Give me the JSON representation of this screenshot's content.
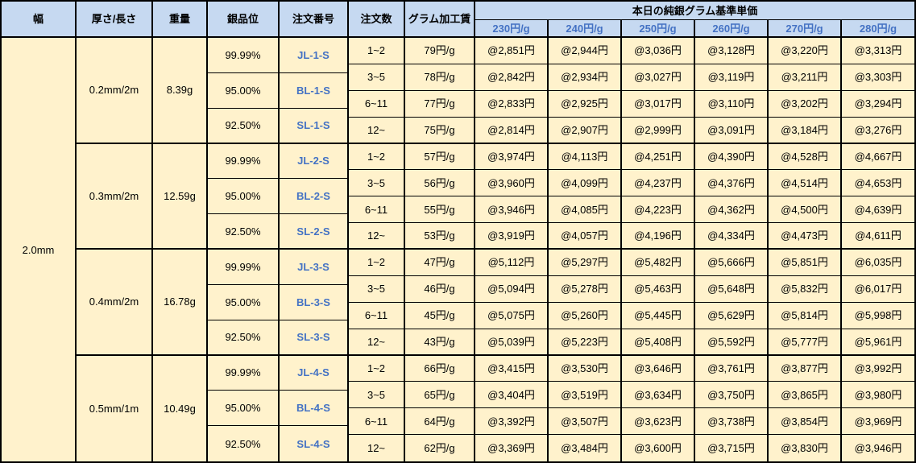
{
  "colors": {
    "header_bg": "#C6D9F1",
    "body_bg": "#FFF2CC",
    "accent_text_blue": "#4472C4",
    "border": "#000000"
  },
  "chart_data": {
    "type": "table",
    "price_header": "本日の純銀グラム基準単価",
    "column_headers": {
      "width": "幅",
      "thickness_length": "厚さ/長さ",
      "weight": "重量",
      "purity": "銀品位",
      "order_no": "注文番号",
      "order_qty": "注文数",
      "gram_fee": "グラム加工賃"
    },
    "price_columns": [
      "230円/g",
      "240円/g",
      "250円/g",
      "260円/g",
      "270円/g",
      "280円/g"
    ],
    "width_value": "2.0mm",
    "groups": [
      {
        "thickness_length": "0.2mm/2m",
        "weight": "8.39g",
        "purities": [
          {
            "purity": "99.99%",
            "order_no": "JL-1-S"
          },
          {
            "purity": "95.00%",
            "order_no": "BL-1-S"
          },
          {
            "purity": "92.50%",
            "order_no": "SL-1-S"
          }
        ],
        "rows": [
          {
            "qty": "1~2",
            "fee": "79円/g",
            "prices": [
              "@2,851円",
              "@2,944円",
              "@3,036円",
              "@3,128円",
              "@3,220円",
              "@3,313円"
            ]
          },
          {
            "qty": "3~5",
            "fee": "78円/g",
            "prices": [
              "@2,842円",
              "@2,934円",
              "@3,027円",
              "@3,119円",
              "@3,211円",
              "@3,303円"
            ]
          },
          {
            "qty": "6~11",
            "fee": "77円/g",
            "prices": [
              "@2,833円",
              "@2,925円",
              "@3,017円",
              "@3,110円",
              "@3,202円",
              "@3,294円"
            ]
          },
          {
            "qty": "12~",
            "fee": "75円/g",
            "prices": [
              "@2,814円",
              "@2,907円",
              "@2,999円",
              "@3,091円",
              "@3,184円",
              "@3,276円"
            ]
          }
        ]
      },
      {
        "thickness_length": "0.3mm/2m",
        "weight": "12.59g",
        "purities": [
          {
            "purity": "99.99%",
            "order_no": "JL-2-S"
          },
          {
            "purity": "95.00%",
            "order_no": "BL-2-S"
          },
          {
            "purity": "92.50%",
            "order_no": "SL-2-S"
          }
        ],
        "rows": [
          {
            "qty": "1~2",
            "fee": "57円/g",
            "prices": [
              "@3,974円",
              "@4,113円",
              "@4,251円",
              "@4,390円",
              "@4,528円",
              "@4,667円"
            ]
          },
          {
            "qty": "3~5",
            "fee": "56円/g",
            "prices": [
              "@3,960円",
              "@4,099円",
              "@4,237円",
              "@4,376円",
              "@4,514円",
              "@4,653円"
            ]
          },
          {
            "qty": "6~11",
            "fee": "55円/g",
            "prices": [
              "@3,946円",
              "@4,085円",
              "@4,223円",
              "@4,362円",
              "@4,500円",
              "@4,639円"
            ]
          },
          {
            "qty": "12~",
            "fee": "53円/g",
            "prices": [
              "@3,919円",
              "@4,057円",
              "@4,196円",
              "@4,334円",
              "@4,473円",
              "@4,611円"
            ]
          }
        ]
      },
      {
        "thickness_length": "0.4mm/2m",
        "weight": "16.78g",
        "purities": [
          {
            "purity": "99.99%",
            "order_no": "JL-3-S"
          },
          {
            "purity": "95.00%",
            "order_no": "BL-3-S"
          },
          {
            "purity": "92.50%",
            "order_no": "SL-3-S"
          }
        ],
        "rows": [
          {
            "qty": "1~2",
            "fee": "47円/g",
            "prices": [
              "@5,112円",
              "@5,297円",
              "@5,482円",
              "@5,666円",
              "@5,851円",
              "@6,035円"
            ]
          },
          {
            "qty": "3~5",
            "fee": "46円/g",
            "prices": [
              "@5,094円",
              "@5,278円",
              "@5,463円",
              "@5,648円",
              "@5,832円",
              "@6,017円"
            ]
          },
          {
            "qty": "6~11",
            "fee": "45円/g",
            "prices": [
              "@5,075円",
              "@5,260円",
              "@5,445円",
              "@5,629円",
              "@5,814円",
              "@5,998円"
            ]
          },
          {
            "qty": "12~",
            "fee": "43円/g",
            "prices": [
              "@5,039円",
              "@5,223円",
              "@5,408円",
              "@5,592円",
              "@5,777円",
              "@5,961円"
            ]
          }
        ]
      },
      {
        "thickness_length": "0.5mm/1m",
        "weight": "10.49g",
        "purities": [
          {
            "purity": "99.99%",
            "order_no": "JL-4-S"
          },
          {
            "purity": "95.00%",
            "order_no": "BL-4-S"
          },
          {
            "purity": "92.50%",
            "order_no": "SL-4-S"
          }
        ],
        "rows": [
          {
            "qty": "1~2",
            "fee": "66円/g",
            "prices": [
              "@3,415円",
              "@3,530円",
              "@3,646円",
              "@3,761円",
              "@3,877円",
              "@3,992円"
            ]
          },
          {
            "qty": "3~5",
            "fee": "65円/g",
            "prices": [
              "@3,404円",
              "@3,519円",
              "@3,634円",
              "@3,750円",
              "@3,865円",
              "@3,980円"
            ]
          },
          {
            "qty": "6~11",
            "fee": "64円/g",
            "prices": [
              "@3,392円",
              "@3,507円",
              "@3,623円",
              "@3,738円",
              "@3,854円",
              "@3,969円"
            ]
          },
          {
            "qty": "12~",
            "fee": "62円/g",
            "prices": [
              "@3,369円",
              "@3,484円",
              "@3,600円",
              "@3,715円",
              "@3,830円",
              "@3,946円"
            ]
          }
        ]
      }
    ]
  }
}
